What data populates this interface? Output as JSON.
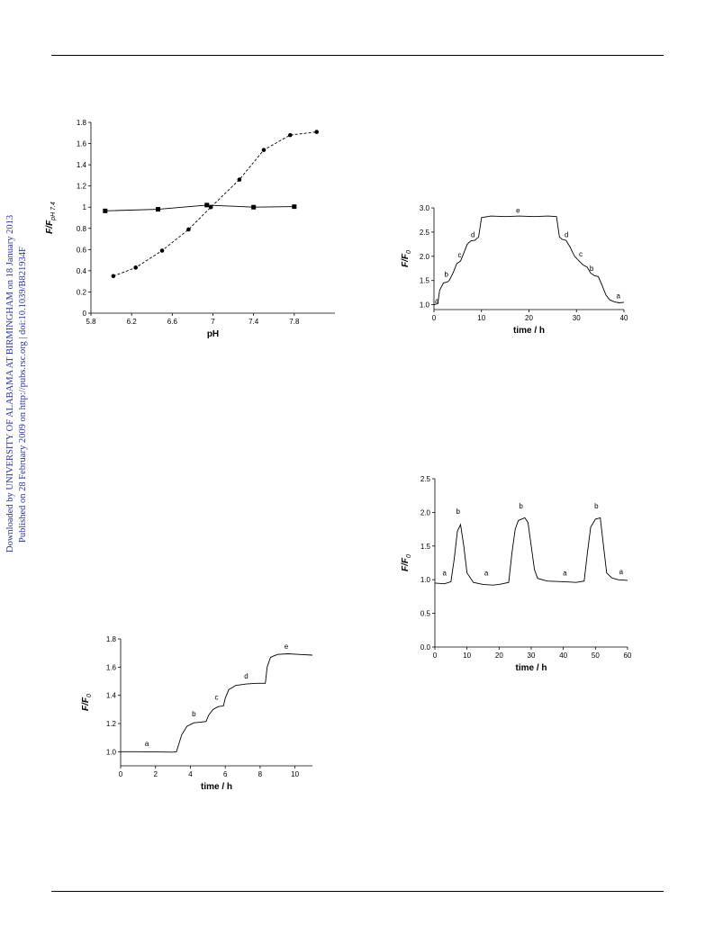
{
  "sidebar": {
    "line1": "Downloaded by UNIVERSITY OF ALABAMA AT BIRMINGHAM on 18 January 2013",
    "line2": "Published on 28 February 2009 on http://pubs.rsc.org | doi:10.1039/B821934F"
  },
  "chart_data": [
    {
      "id": "ph",
      "type": "line",
      "xlabel": "pH",
      "ylabel": "F/F",
      "ylabel_sub": "pH 7.4",
      "xlim": [
        5.8,
        8.2
      ],
      "ylim": [
        0,
        1.8
      ],
      "xticks": [
        5.8,
        6.2,
        6.6,
        7,
        7.4,
        7.8
      ],
      "xtick_labels": [
        "5.8",
        "6.2",
        "6.6",
        "7",
        "7.4",
        "7.8"
      ],
      "yticks": [
        0,
        0.2,
        0.4,
        0.6,
        0.8,
        1,
        1.2,
        1.4,
        1.6,
        1.8
      ],
      "ytick_labels": [
        "0",
        "0.2",
        "0.4",
        "0.6",
        "0.8",
        "1",
        "1.2",
        "1.4",
        "1.6",
        "1.8"
      ],
      "grid": false,
      "series": [
        {
          "style": "solid",
          "marker": "square",
          "x": [
            5.94,
            6.46,
            6.94,
            7.4,
            7.8
          ],
          "y": [
            0.965,
            0.98,
            1.02,
            1.0,
            1.005
          ]
        },
        {
          "style": "dashed",
          "marker": "circle",
          "x": [
            6.02,
            6.24,
            6.5,
            6.76,
            6.98,
            7.26,
            7.5,
            7.76,
            8.02
          ],
          "y": [
            0.35,
            0.43,
            0.59,
            0.79,
            1.0,
            1.26,
            1.54,
            1.68,
            1.71
          ]
        }
      ]
    },
    {
      "id": "t40",
      "type": "line",
      "xlabel": "time / h",
      "ylabel": "F/F",
      "ylabel_sub": "0",
      "xlim": [
        0,
        40
      ],
      "ylim": [
        0.9,
        3.0
      ],
      "xticks": [
        0,
        10,
        20,
        30,
        40
      ],
      "xtick_labels": [
        "0",
        "10",
        "20",
        "30",
        "40"
      ],
      "yticks": [
        1.0,
        1.5,
        2.0,
        2.5,
        3.0
      ],
      "ytick_labels": [
        "1.0",
        "1.5",
        "2.0",
        "2.5",
        "3.0"
      ],
      "grid": false,
      "series": [
        {
          "style": "solid",
          "x": [
            0,
            0.8,
            1.2,
            2,
            2.8,
            3.2,
            4,
            4.8,
            5.6,
            6.4,
            7,
            7.8,
            8.6,
            9.4,
            10,
            12,
            15,
            18,
            21,
            24,
            25.8,
            26.4,
            27,
            27.8,
            28.6,
            29.6,
            30.6,
            31.4,
            32.2,
            33,
            33.8,
            34.6,
            35.4,
            36.2,
            37,
            38,
            39,
            40
          ],
          "y": [
            1.0,
            1.02,
            1.3,
            1.45,
            1.47,
            1.5,
            1.65,
            1.85,
            1.9,
            2.1,
            2.25,
            2.32,
            2.33,
            2.4,
            2.8,
            2.83,
            2.82,
            2.83,
            2.82,
            2.83,
            2.82,
            2.4,
            2.35,
            2.33,
            2.2,
            2.0,
            1.9,
            1.82,
            1.78,
            1.65,
            1.6,
            1.58,
            1.4,
            1.2,
            1.1,
            1.06,
            1.04,
            1.05
          ]
        }
      ],
      "annotations": [
        {
          "text": "a",
          "x": 0.6,
          "y": 1.03
        },
        {
          "text": "b",
          "x": 2.6,
          "y": 1.58
        },
        {
          "text": "c",
          "x": 5.4,
          "y": 1.98
        },
        {
          "text": "d",
          "x": 8.2,
          "y": 2.4
        },
        {
          "text": "e",
          "x": 17.7,
          "y": 2.9
        },
        {
          "text": "d",
          "x": 27.9,
          "y": 2.4
        },
        {
          "text": "c",
          "x": 30.9,
          "y": 2.0
        },
        {
          "text": "b",
          "x": 33.2,
          "y": 1.7
        },
        {
          "text": "a",
          "x": 38.8,
          "y": 1.13
        }
      ]
    },
    {
      "id": "t60",
      "type": "line",
      "xlabel": "time / h",
      "ylabel": "F/F",
      "ylabel_sub": "0",
      "xlim": [
        0,
        60
      ],
      "ylim": [
        0,
        2.5
      ],
      "xticks": [
        0,
        10,
        20,
        30,
        40,
        50,
        60
      ],
      "xtick_labels": [
        "0",
        "10",
        "20",
        "30",
        "40",
        "50",
        "60"
      ],
      "yticks": [
        0.0,
        0.5,
        1.0,
        1.5,
        2.0,
        2.5
      ],
      "ytick_labels": [
        "0.0",
        "0.5",
        "1.0",
        "1.5",
        "2.0",
        "2.5"
      ],
      "grid": false,
      "series": [
        {
          "style": "solid",
          "x": [
            0,
            3,
            5,
            6,
            7,
            8,
            9,
            10,
            12,
            15,
            18,
            20,
            23,
            24,
            25,
            26,
            28,
            29,
            30,
            31,
            32,
            35,
            40,
            44,
            46.5,
            47.5,
            48.5,
            50,
            51.5,
            52.5,
            53.5,
            55,
            57,
            60
          ],
          "y": [
            0.95,
            0.94,
            0.97,
            1.3,
            1.72,
            1.82,
            1.5,
            1.1,
            0.96,
            0.93,
            0.92,
            0.93,
            0.96,
            1.4,
            1.75,
            1.88,
            1.92,
            1.85,
            1.5,
            1.15,
            1.02,
            0.98,
            0.97,
            0.96,
            0.98,
            1.4,
            1.78,
            1.9,
            1.92,
            1.5,
            1.1,
            1.03,
            1.0,
            0.99
          ]
        }
      ],
      "annotations": [
        {
          "text": "a",
          "x": 3,
          "y": 1.06
        },
        {
          "text": "b",
          "x": 7.2,
          "y": 1.98
        },
        {
          "text": "a",
          "x": 16,
          "y": 1.06
        },
        {
          "text": "b",
          "x": 26.8,
          "y": 2.06
        },
        {
          "text": "a",
          "x": 40.5,
          "y": 1.06
        },
        {
          "text": "b",
          "x": 50.3,
          "y": 2.06
        },
        {
          "text": "a",
          "x": 58,
          "y": 1.08
        }
      ]
    },
    {
      "id": "t10",
      "type": "line",
      "xlabel": "time / h",
      "ylabel": "F/F",
      "ylabel_sub": "0",
      "xlim": [
        0,
        11
      ],
      "ylim": [
        0.9,
        1.8
      ],
      "xticks": [
        0,
        2,
        4,
        6,
        8,
        10
      ],
      "xtick_labels": [
        "0",
        "2",
        "4",
        "6",
        "8",
        "10"
      ],
      "yticks": [
        1.0,
        1.2,
        1.4,
        1.6,
        1.8
      ],
      "ytick_labels": [
        "1.0",
        "1.2",
        "1.4",
        "1.6",
        "1.8"
      ],
      "grid": false,
      "series": [
        {
          "style": "solid",
          "x": [
            0,
            1,
            2,
            3,
            3.2,
            3.5,
            3.8,
            4.2,
            4.6,
            4.9,
            5.05,
            5.3,
            5.6,
            5.9,
            6.0,
            6.2,
            6.6,
            7.2,
            7.8,
            8.3,
            8.4,
            8.6,
            9.0,
            9.6,
            10.2,
            11
          ],
          "y": [
            1.0,
            1.0,
            0.998,
            0.997,
            1.0,
            1.12,
            1.18,
            1.205,
            1.21,
            1.215,
            1.26,
            1.3,
            1.32,
            1.325,
            1.38,
            1.44,
            1.47,
            1.48,
            1.485,
            1.485,
            1.6,
            1.67,
            1.69,
            1.695,
            1.69,
            1.685
          ]
        }
      ],
      "annotations": [
        {
          "text": "a",
          "x": 1.5,
          "y": 1.04
        },
        {
          "text": "b",
          "x": 4.2,
          "y": 1.25
        },
        {
          "text": "c",
          "x": 5.5,
          "y": 1.37
        },
        {
          "text": "d",
          "x": 7.2,
          "y": 1.52
        },
        {
          "text": "e",
          "x": 9.5,
          "y": 1.73
        }
      ]
    }
  ]
}
